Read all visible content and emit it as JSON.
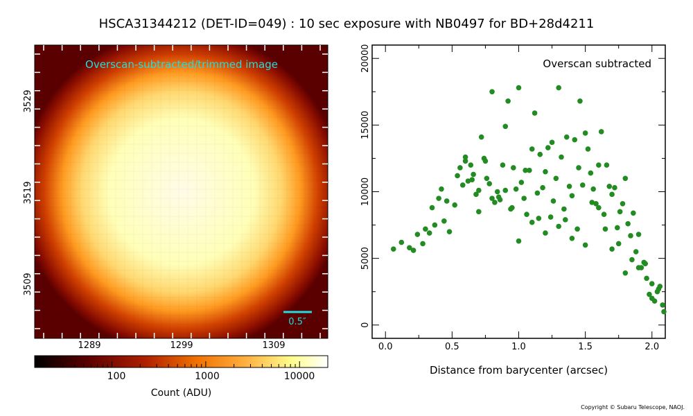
{
  "title": "HSCA31344212 (DET-ID=049) :  10 sec exposure with NB0497 for BD+28d4211",
  "copyright": "Copyright © Subaru Telescope, NAOJ.",
  "image_panel": {
    "label": "Overscan-subtracted/trimmed image",
    "label_color": "#22dddd",
    "scale_bar_label": "0.5″",
    "x_ticks": [
      "1289",
      "1299",
      "1309"
    ],
    "y_ticks": [
      "3529",
      "3519",
      "3509"
    ]
  },
  "colorbar": {
    "label": "Count (ADU)",
    "ticks": [
      "100",
      "1000",
      "10000"
    ],
    "colors": [
      "#000000",
      "#5a0000",
      "#b02000",
      "#f07000",
      "#ffb040",
      "#ffff90",
      "#ffffff"
    ]
  },
  "chart_data": {
    "type": "scatter",
    "annotation": "Overscan subtracted",
    "xlabel": "Distance from barycenter (arcsec)",
    "ylabel": "",
    "xlim": [
      -0.1,
      2.1
    ],
    "ylim": [
      -1000,
      21000
    ],
    "x_ticks": [
      "0.0",
      "0.5",
      "1.0",
      "1.5",
      "2.0"
    ],
    "y_ticks": [
      "0",
      "5000",
      "10000",
      "15000",
      "20000"
    ],
    "marker_color": "#228b22",
    "x": [
      0.06,
      0.12,
      0.18,
      0.21,
      0.24,
      0.28,
      0.3,
      0.33,
      0.35,
      0.37,
      0.4,
      0.42,
      0.44,
      0.46,
      0.48,
      0.52,
      0.54,
      0.56,
      0.58,
      0.6,
      0.62,
      0.64,
      0.66,
      0.68,
      0.7,
      0.72,
      0.74,
      0.76,
      0.78,
      0.8,
      0.82,
      0.84,
      0.86,
      0.88,
      0.9,
      0.92,
      0.94,
      0.96,
      0.98,
      1.0,
      1.02,
      1.04,
      1.06,
      1.08,
      1.1,
      1.12,
      1.14,
      1.16,
      1.18,
      1.2,
      1.22,
      1.24,
      1.26,
      1.28,
      1.3,
      1.32,
      1.34,
      1.36,
      1.38,
      1.4,
      1.42,
      1.44,
      1.46,
      1.48,
      1.5,
      1.52,
      1.54,
      1.56,
      1.58,
      1.6,
      1.62,
      1.64,
      1.66,
      1.68,
      1.7,
      1.72,
      1.74,
      1.76,
      1.78,
      1.8,
      1.82,
      1.84,
      1.86,
      1.88,
      1.9,
      1.92,
      1.94,
      1.96,
      1.98,
      2.0,
      2.02,
      2.04,
      2.06,
      2.08,
      2.1,
      0.65,
      0.75,
      0.85,
      0.95,
      1.05,
      1.15,
      1.25,
      1.35,
      1.45,
      1.55,
      0.7,
      0.8,
      0.9,
      1.0,
      1.1,
      1.2,
      1.3,
      1.4,
      1.5,
      1.6,
      1.65,
      1.75,
      1.85,
      1.95,
      2.05,
      0.6,
      1.7,
      1.8,
      1.9,
      2.0
    ],
    "y": [
      5700,
      6200,
      5800,
      5600,
      6800,
      6100,
      7200,
      6900,
      8800,
      7500,
      9500,
      10200,
      7800,
      9300,
      7000,
      9000,
      11200,
      11800,
      10500,
      12300,
      10800,
      12000,
      11300,
      9800,
      10100,
      14100,
      12500,
      11000,
      10600,
      17500,
      9200,
      10000,
      9400,
      12000,
      14900,
      16800,
      8700,
      11800,
      10200,
      17800,
      10700,
      9500,
      8300,
      11600,
      13200,
      15900,
      9900,
      12800,
      10300,
      11500,
      13300,
      8100,
      9300,
      11000,
      17800,
      12600,
      8700,
      14100,
      10400,
      9700,
      13900,
      7200,
      16800,
      10500,
      14400,
      13200,
      11400,
      10200,
      9100,
      12000,
      14500,
      8300,
      12000,
      10400,
      9800,
      10300,
      7300,
      8500,
      9100,
      11000,
      7600,
      6700,
      8400,
      5500,
      6800,
      4300,
      4700,
      3500,
      2300,
      3100,
      1800,
      2500,
      2900,
      1500,
      1000,
      10900,
      12300,
      9600,
      8800,
      11600,
      8000,
      13700,
      7900,
      11800,
      9200,
      8500,
      9500,
      10100,
      6300,
      7700,
      6900,
      7400,
      6500,
      6000,
      8800,
      7200,
      6100,
      4900,
      4600,
      2700,
      12600,
      5700,
      3900,
      4300,
      2000
    ]
  }
}
